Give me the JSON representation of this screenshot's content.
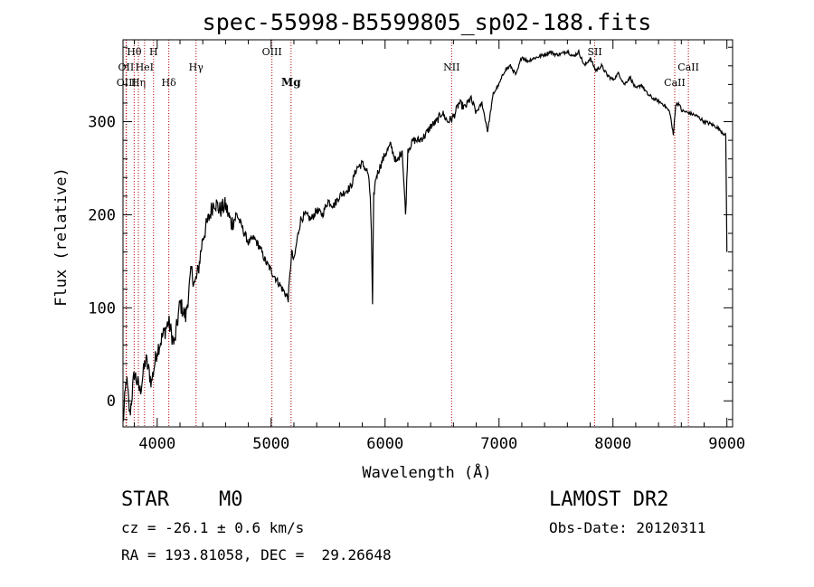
{
  "chart_data": {
    "type": "line",
    "title": "spec-55998-B5599805_sp02-188.fits",
    "xlabel": "Wavelength (Å)",
    "ylabel": "Flux (relative)",
    "xlim": [
      3700,
      9050
    ],
    "ylim": [
      -28,
      388
    ],
    "xticks": [
      4000,
      5000,
      6000,
      7000,
      8000,
      9000
    ],
    "yticks": [
      0,
      100,
      200,
      300
    ],
    "series": [
      {
        "name": "spectrum",
        "x": [
          3700,
          3730,
          3760,
          3800,
          3850,
          3900,
          3950,
          4000,
          4050,
          4100,
          4150,
          4200,
          4250,
          4300,
          4330,
          4360,
          4400,
          4450,
          4500,
          4550,
          4600,
          4650,
          4700,
          4750,
          4800,
          4850,
          4900,
          4950,
          5000,
          5050,
          5100,
          5150,
          5180,
          5200,
          5230,
          5260,
          5300,
          5350,
          5400,
          5450,
          5500,
          5550,
          5600,
          5650,
          5700,
          5750,
          5800,
          5850,
          5870,
          5880,
          5890,
          5900,
          5910,
          5920,
          5950,
          6000,
          6050,
          6100,
          6150,
          6180,
          6200,
          6250,
          6300,
          6350,
          6400,
          6450,
          6500,
          6550,
          6600,
          6650,
          6700,
          6750,
          6800,
          6850,
          6900,
          6950,
          7000,
          7050,
          7100,
          7150,
          7200,
          7250,
          7300,
          7350,
          7400,
          7450,
          7500,
          7550,
          7600,
          7650,
          7700,
          7750,
          7800,
          7850,
          7900,
          7950,
          8000,
          8050,
          8100,
          8150,
          8200,
          8250,
          8300,
          8350,
          8400,
          8450,
          8500,
          8530,
          8550,
          8580,
          8600,
          8650,
          8700,
          8750,
          8800,
          8850,
          8900,
          8950,
          8990,
          9000
        ],
        "y": [
          -25,
          25,
          -15,
          30,
          10,
          45,
          20,
          55,
          70,
          85,
          60,
          105,
          90,
          140,
          125,
          140,
          175,
          195,
          215,
          205,
          210,
          190,
          200,
          185,
          170,
          175,
          165,
          150,
          140,
          130,
          120,
          110,
          160,
          150,
          175,
          195,
          200,
          195,
          205,
          200,
          215,
          210,
          220,
          225,
          230,
          250,
          255,
          245,
          220,
          180,
          100,
          220,
          230,
          240,
          250,
          265,
          275,
          255,
          270,
          200,
          270,
          280,
          280,
          285,
          295,
          300,
          310,
          300,
          305,
          320,
          315,
          325,
          310,
          320,
          290,
          330,
          340,
          355,
          360,
          350,
          370,
          365,
          368,
          370,
          372,
          375,
          372,
          373,
          376,
          370,
          375,
          360,
          368,
          355,
          360,
          350,
          345,
          352,
          340,
          348,
          335,
          340,
          330,
          325,
          322,
          318,
          310,
          285,
          318,
          320,
          312,
          310,
          308,
          305,
          300,
          298,
          295,
          290,
          285,
          160
        ]
      }
    ],
    "lines": [
      {
        "label": "Hθ",
        "x": 3798,
        "row": 1,
        "bold": false
      },
      {
        "label": "OII",
        "x": 3727,
        "row": 2,
        "bold": false
      },
      {
        "label": "OIII",
        "x": 3730,
        "row": 3,
        "bold": false
      },
      {
        "label": "Hη",
        "x": 3835,
        "row": 3,
        "bold": false
      },
      {
        "label": "H",
        "x": 3968,
        "row": 1,
        "bold": false
      },
      {
        "label": "HeI",
        "x": 3889,
        "row": 2,
        "bold": false
      },
      {
        "label": "Hδ",
        "x": 4102,
        "row": 3,
        "bold": false
      },
      {
        "label": "Hγ",
        "x": 4341,
        "row": 2,
        "bold": false
      },
      {
        "label": "OIII",
        "x": 5007,
        "row": 1,
        "bold": false
      },
      {
        "label": "Mg",
        "x": 5175,
        "row": 3,
        "bold": true
      },
      {
        "label": "NII",
        "x": 6584,
        "row": 2,
        "bold": false
      },
      {
        "label": "SII",
        "x": 7840,
        "row": 1,
        "bold": false
      },
      {
        "label": "CaII",
        "x": 8542,
        "row": 3,
        "bold": false
      },
      {
        "label": "CaII",
        "x": 8662,
        "row": 2,
        "bold": false
      }
    ]
  },
  "info": {
    "object_class": "STAR",
    "subclass": "M0",
    "survey": "LAMOST DR2",
    "redshift": "cz = -26.1 ± 0.6 km/s",
    "obs_date": "Obs-Date: 20120311",
    "coords": "RA = 193.81058, DEC =  29.26648"
  },
  "colors": {
    "spectrum": "#000000",
    "line_marker": "#b30000"
  }
}
